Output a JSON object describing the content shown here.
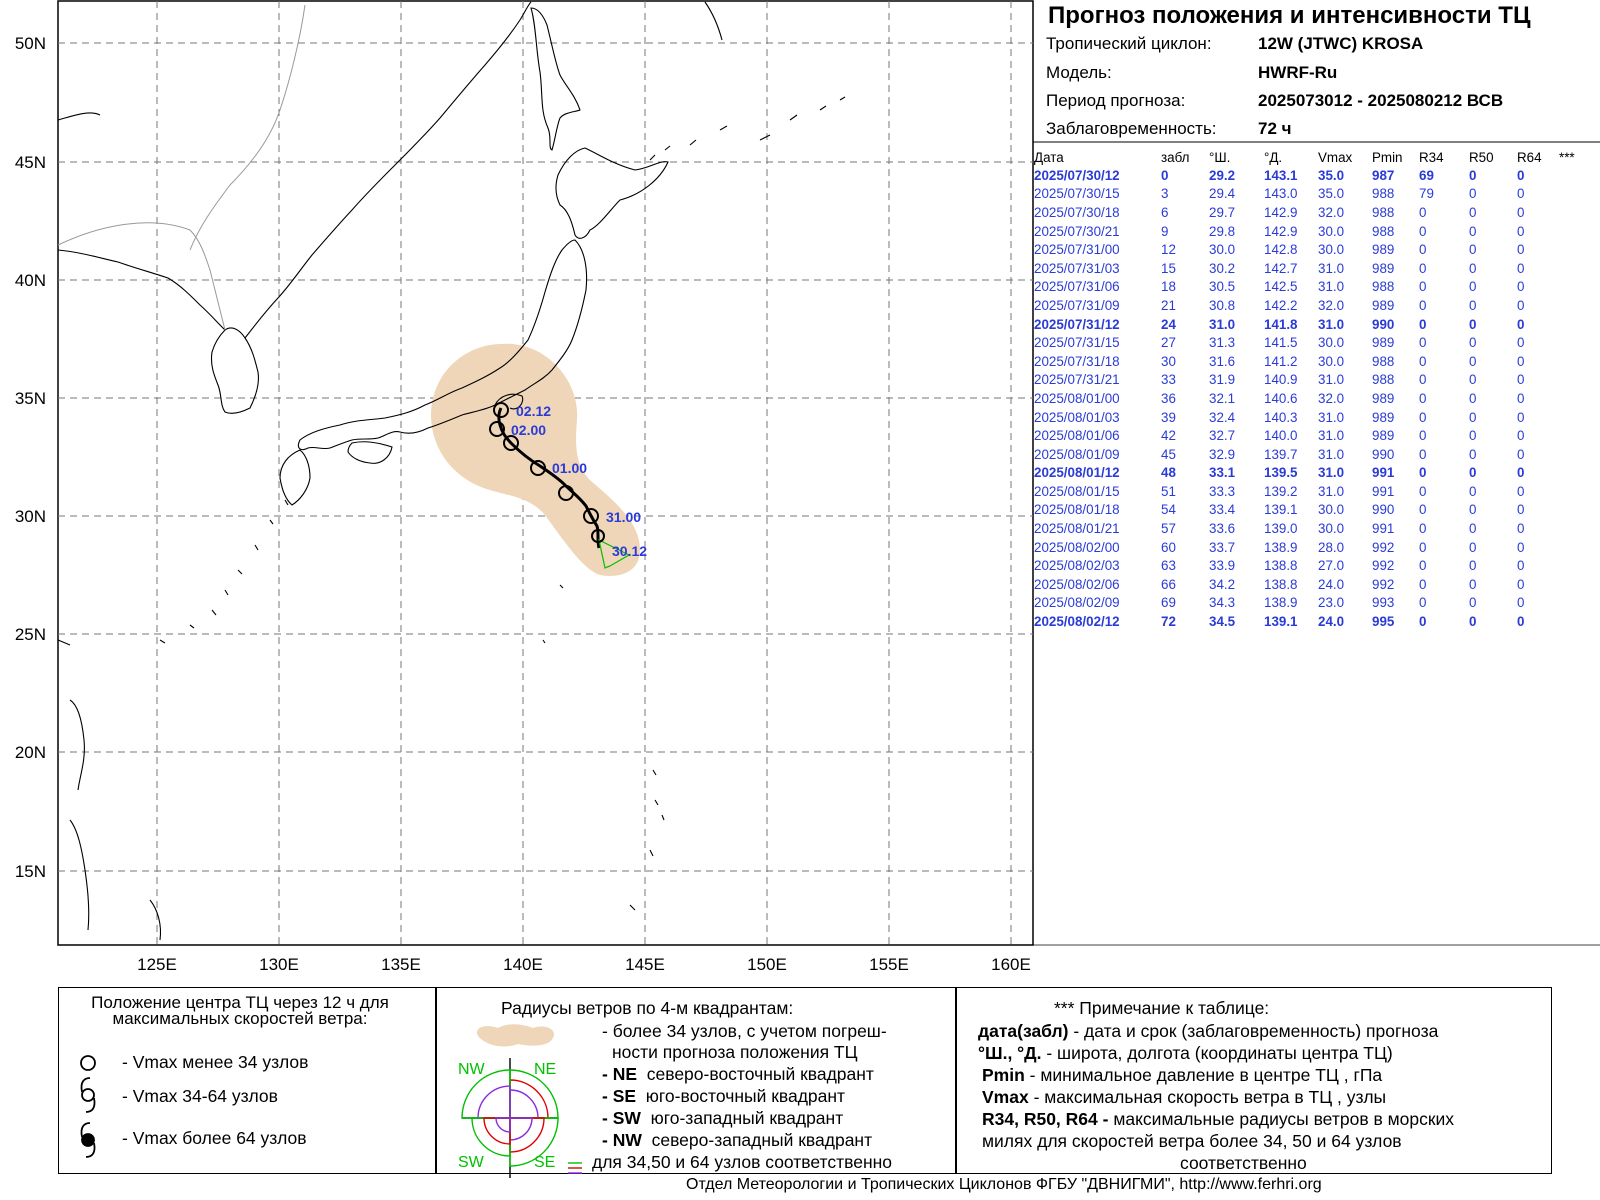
{
  "header": {
    "title": "Прогноз положения и интенсивности ТЦ",
    "rows": [
      {
        "label": "Тропический циклон:",
        "value": "12W (JTWC)  KROSA"
      },
      {
        "label": "Модель:",
        "value": "HWRF-Ru"
      },
      {
        "label": "Период прогноза:",
        "value": "2025073012 - 2025080212 ВСВ"
      },
      {
        "label": "Заблаговременность:",
        "value": "72 ч"
      }
    ]
  },
  "table": {
    "columns": [
      "Дата",
      "забл",
      "°Ш.",
      "°Д.",
      "Vmax",
      "Pmin",
      "R34",
      "R50",
      "R64",
      "***"
    ],
    "rows": [
      [
        "2025/07/30/12",
        "0",
        "29.2",
        "143.1",
        "35.0",
        "987",
        "69",
        "0",
        "0"
      ],
      [
        "2025/07/30/15",
        "3",
        "29.4",
        "143.0",
        "35.0",
        "988",
        "79",
        "0",
        "0"
      ],
      [
        "2025/07/30/18",
        "6",
        "29.7",
        "142.9",
        "32.0",
        "988",
        "0",
        "0",
        "0"
      ],
      [
        "2025/07/30/21",
        "9",
        "29.8",
        "142.9",
        "30.0",
        "988",
        "0",
        "0",
        "0"
      ],
      [
        "2025/07/31/00",
        "12",
        "30.0",
        "142.8",
        "30.0",
        "989",
        "0",
        "0",
        "0"
      ],
      [
        "2025/07/31/03",
        "15",
        "30.2",
        "142.7",
        "31.0",
        "989",
        "0",
        "0",
        "0"
      ],
      [
        "2025/07/31/06",
        "18",
        "30.5",
        "142.5",
        "31.0",
        "988",
        "0",
        "0",
        "0"
      ],
      [
        "2025/07/31/09",
        "21",
        "30.8",
        "142.2",
        "32.0",
        "989",
        "0",
        "0",
        "0"
      ],
      [
        "2025/07/31/12",
        "24",
        "31.0",
        "141.8",
        "31.0",
        "990",
        "0",
        "0",
        "0"
      ],
      [
        "2025/07/31/15",
        "27",
        "31.3",
        "141.5",
        "30.0",
        "989",
        "0",
        "0",
        "0"
      ],
      [
        "2025/07/31/18",
        "30",
        "31.6",
        "141.2",
        "30.0",
        "988",
        "0",
        "0",
        "0"
      ],
      [
        "2025/07/31/21",
        "33",
        "31.9",
        "140.9",
        "31.0",
        "988",
        "0",
        "0",
        "0"
      ],
      [
        "2025/08/01/00",
        "36",
        "32.1",
        "140.6",
        "32.0",
        "989",
        "0",
        "0",
        "0"
      ],
      [
        "2025/08/01/03",
        "39",
        "32.4",
        "140.3",
        "31.0",
        "989",
        "0",
        "0",
        "0"
      ],
      [
        "2025/08/01/06",
        "42",
        "32.7",
        "140.0",
        "31.0",
        "989",
        "0",
        "0",
        "0"
      ],
      [
        "2025/08/01/09",
        "45",
        "32.9",
        "139.7",
        "31.0",
        "990",
        "0",
        "0",
        "0"
      ],
      [
        "2025/08/01/12",
        "48",
        "33.1",
        "139.5",
        "31.0",
        "991",
        "0",
        "0",
        "0"
      ],
      [
        "2025/08/01/15",
        "51",
        "33.3",
        "139.2",
        "31.0",
        "991",
        "0",
        "0",
        "0"
      ],
      [
        "2025/08/01/18",
        "54",
        "33.4",
        "139.1",
        "30.0",
        "990",
        "0",
        "0",
        "0"
      ],
      [
        "2025/08/01/21",
        "57",
        "33.6",
        "139.0",
        "30.0",
        "991",
        "0",
        "0",
        "0"
      ],
      [
        "2025/08/02/00",
        "60",
        "33.7",
        "138.9",
        "28.0",
        "992",
        "0",
        "0",
        "0"
      ],
      [
        "2025/08/02/03",
        "63",
        "33.9",
        "138.8",
        "27.0",
        "992",
        "0",
        "0",
        "0"
      ],
      [
        "2025/08/02/06",
        "66",
        "34.2",
        "138.8",
        "24.0",
        "992",
        "0",
        "0",
        "0"
      ],
      [
        "2025/08/02/09",
        "69",
        "34.3",
        "138.9",
        "23.0",
        "993",
        "0",
        "0",
        "0"
      ],
      [
        "2025/08/02/12",
        "72",
        "34.5",
        "139.1",
        "24.0",
        "995",
        "0",
        "0",
        "0"
      ]
    ],
    "bold_rows": [
      0,
      8,
      16,
      24
    ]
  },
  "map": {
    "lon_labels": [
      "125E",
      "130E",
      "135E",
      "140E",
      "145E",
      "150E",
      "155E",
      "160E"
    ],
    "lat_labels": [
      "50N",
      "45N",
      "40N",
      "35N",
      "30N",
      "25N",
      "20N",
      "15N"
    ],
    "track_labels": [
      "02.12",
      "02.00",
      "01.00",
      "31.00",
      "30.12"
    ],
    "colors": {
      "uncertainty": "#efd6b8",
      "label": "#2a3bd8",
      "r34_quadrant": "#00c000"
    }
  },
  "legend": {
    "center": {
      "title": "Положение центра ТЦ через 12 ч для максимальных скоростей ветра:",
      "items": [
        "- Vmax  менее 34 узлов",
        "- Vmax  34-64 узлов",
        "- Vmax  более 64 узлов"
      ]
    },
    "radii": {
      "title": "Радиусы ветров по 4-м квадрантам:",
      "line1": "- более 34 узлов, с учетом погреш-",
      "line2": "ности прогноза положения ТЦ",
      "items": [
        {
          "code": "- NE",
          "text": "северо-восточный квадрант"
        },
        {
          "code": "- SE",
          "text": "юго-восточный квадрант"
        },
        {
          "code": "- SW",
          "text": "юго-западный квадрант"
        },
        {
          "code": "- NW",
          "text": "северо-западный квадрант"
        }
      ],
      "last": "для 34,50 и 64 узлов соответственно",
      "quadrant_labels": [
        "NW",
        "NE",
        "SW",
        "SE"
      ]
    },
    "notes": {
      "title": "*** Примечание к таблице:",
      "items": [
        {
          "key": "дата(забл)",
          "text": " - дата и срок (заблаговременность) прогноза"
        },
        {
          "key": "°Ш., °Д.",
          "text": " - широта, долгота   (координаты центра ТЦ)"
        },
        {
          "key": "Pmin",
          "text": "  - минимальное давление в центре ТЦ , гПа"
        },
        {
          "key": "Vmax",
          "text": "   -  максимальная скорость ветра в ТЦ , узлы"
        },
        {
          "key": "R34, R50, R64 -",
          "text": "  максимальные радиусы ветров в морских"
        },
        {
          "key": "",
          "text": "милях для скоростей ветра более 34, 50 и 64 узлов"
        },
        {
          "key": "",
          "text": "соответственно"
        }
      ]
    }
  },
  "footer": "Отдел Метеорологии и Тропических Циклонов ФГБУ \"ДВНИГМИ\",  http://www.ferhri.org"
}
